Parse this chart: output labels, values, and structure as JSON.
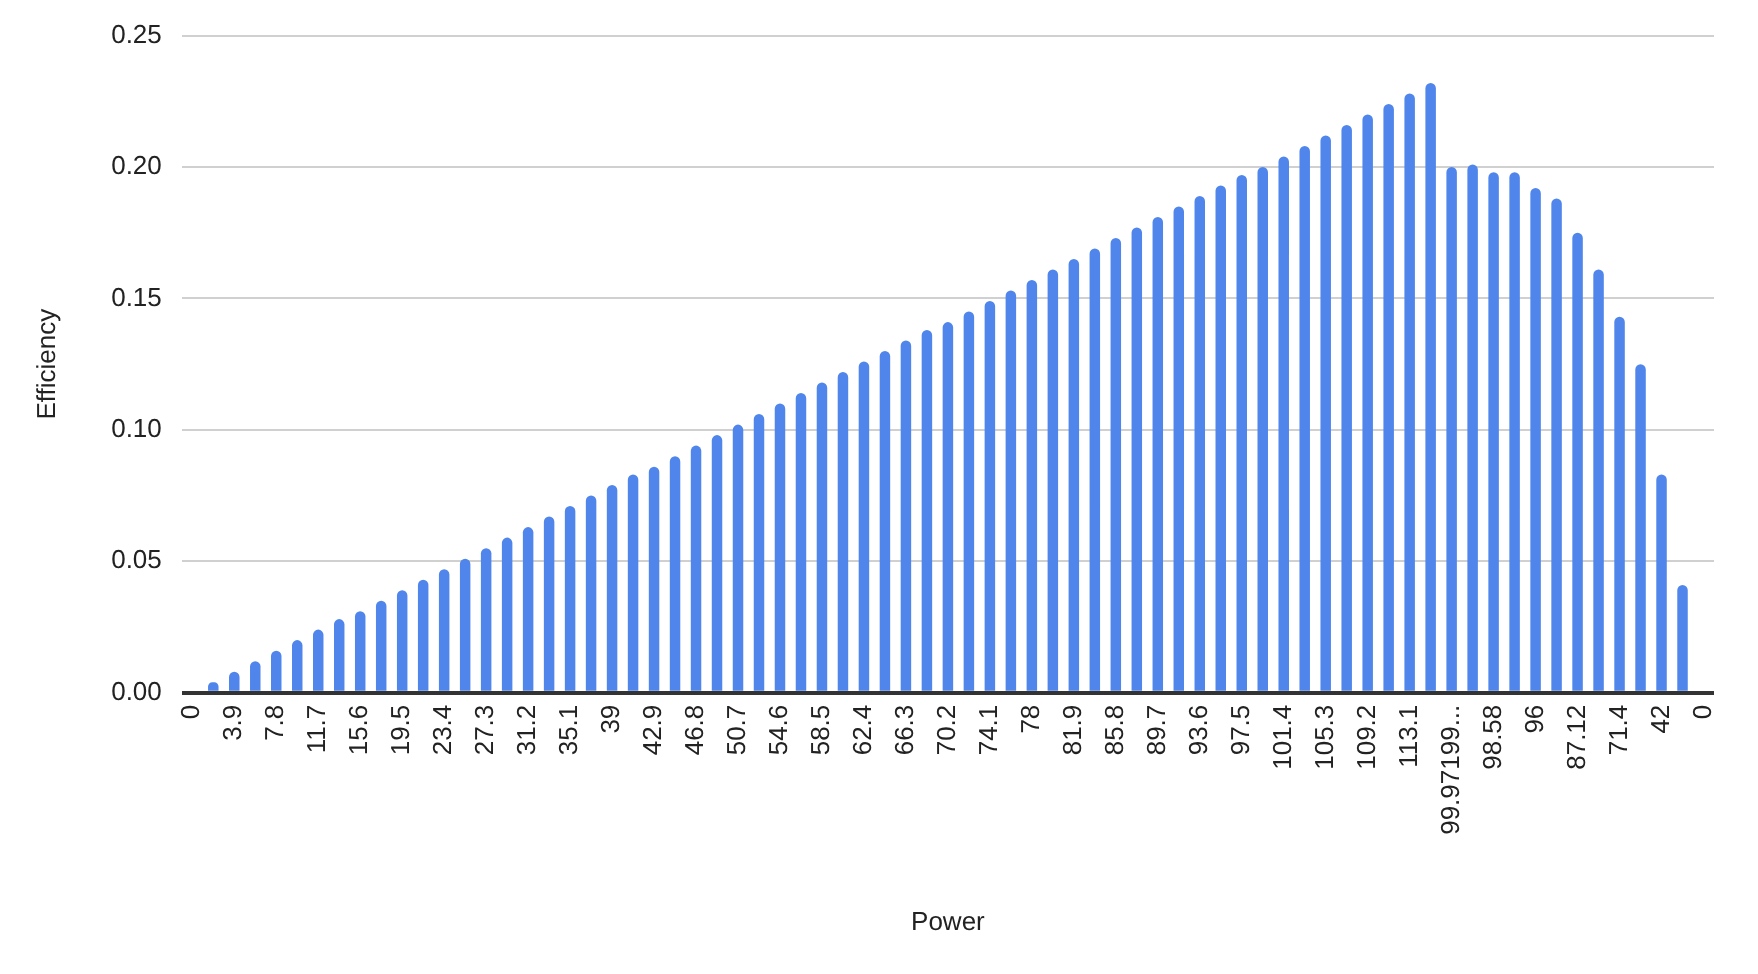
{
  "chart_data": {
    "type": "bar",
    "xlabel": "Power",
    "ylabel": "Efficiency",
    "color": "#5086ec",
    "categories": [
      "0",
      null,
      "3.9",
      null,
      "7.8",
      null,
      "11.7",
      null,
      "15.6",
      null,
      "19.5",
      null,
      "23.4",
      null,
      "27.3",
      null,
      "31.2",
      null,
      "35.1",
      null,
      "39",
      null,
      "42.9",
      null,
      "46.8",
      null,
      "50.7",
      null,
      "54.6",
      null,
      "58.5",
      null,
      "62.4",
      null,
      "66.3",
      null,
      "70.2",
      null,
      "74.1",
      null,
      "78",
      null,
      "81.9",
      null,
      "85.8",
      null,
      "89.7",
      null,
      "93.6",
      null,
      "97.5",
      null,
      "101.4",
      null,
      "105.3",
      null,
      "109.2",
      null,
      "113.1",
      null,
      "99.97199...",
      null,
      "98.58",
      null,
      "96",
      null,
      "87.12",
      null,
      "71.4",
      null,
      "42",
      null,
      "0"
    ],
    "values": [
      0,
      0.004,
      0.008,
      0.012,
      0.016,
      0.02,
      0.024,
      0.028,
      0.031,
      0.035,
      0.039,
      0.043,
      0.047,
      0.051,
      0.055,
      0.059,
      0.063,
      0.067,
      0.071,
      0.075,
      0.079,
      0.083,
      0.086,
      0.09,
      0.094,
      0.098,
      0.102,
      0.106,
      0.11,
      0.114,
      0.118,
      0.122,
      0.126,
      0.13,
      0.134,
      0.138,
      0.141,
      0.145,
      0.149,
      0.153,
      0.157,
      0.161,
      0.165,
      0.169,
      0.173,
      0.177,
      0.181,
      0.185,
      0.189,
      0.193,
      0.197,
      0.2,
      0.204,
      0.208,
      0.212,
      0.216,
      0.22,
      0.224,
      0.228,
      0.232,
      0.2,
      0.201,
      0.198,
      0.198,
      0.192,
      0.188,
      0.175,
      0.161,
      0.143,
      0.125,
      0.083,
      0.041,
      0
    ],
    "ylim": [
      0,
      0.25
    ],
    "yticks": [
      {
        "value": 0,
        "label": "0.00"
      },
      {
        "value": 0.05,
        "label": "0.05"
      },
      {
        "value": 0.1,
        "label": "0.10"
      },
      {
        "value": 0.15,
        "label": "0.15"
      },
      {
        "value": 0.2,
        "label": "0.20"
      },
      {
        "value": 0.25,
        "label": "0.25"
      }
    ],
    "grid": "y",
    "legend": false
  }
}
